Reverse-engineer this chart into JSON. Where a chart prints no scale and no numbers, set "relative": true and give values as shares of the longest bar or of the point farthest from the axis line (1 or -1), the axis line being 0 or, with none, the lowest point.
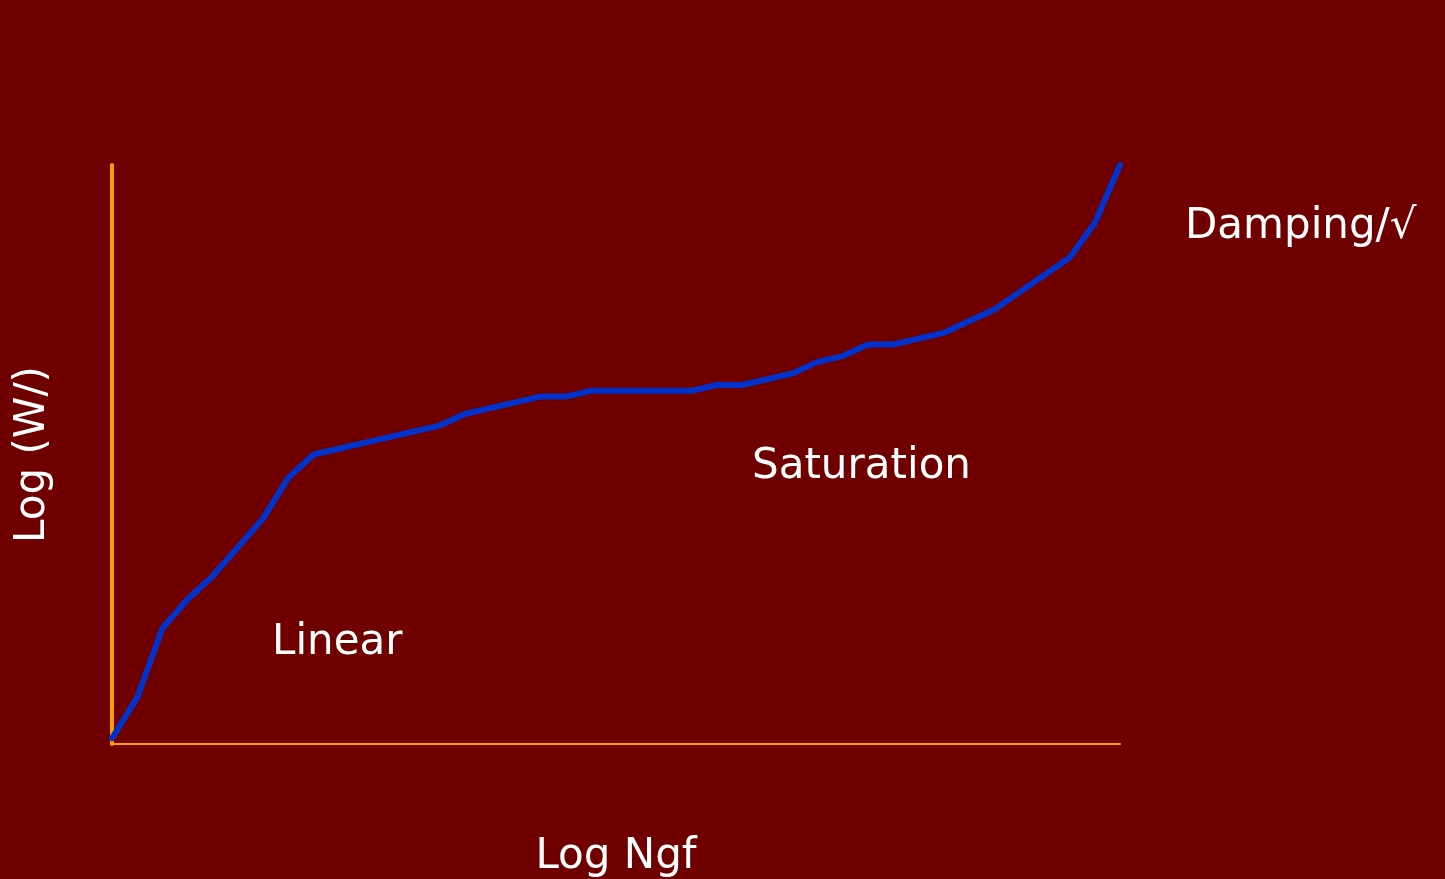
{
  "chart_data": {
    "type": "line",
    "relative": true,
    "xlabel": "Log Ngf",
    "ylabel": "Log (W/)",
    "categories": [
      null,
      null,
      null,
      null,
      null,
      null,
      null,
      null,
      null,
      null,
      null,
      null,
      null,
      null,
      null,
      null,
      null,
      null,
      null,
      null,
      null,
      null,
      null,
      null,
      null,
      null,
      null,
      null,
      null,
      null,
      null,
      null,
      null,
      null,
      null,
      null,
      null,
      null,
      null,
      null,
      null
    ],
    "series": [
      {
        "color": "#0033cc",
        "values": [
          0.01,
          0.08,
          0.2,
          0.25,
          0.29,
          0.34,
          0.39,
          0.46,
          0.5,
          0.51,
          0.52,
          0.53,
          0.54,
          0.55,
          0.57,
          0.58,
          0.59,
          0.6,
          0.6,
          0.61,
          0.61,
          0.61,
          0.61,
          0.61,
          0.62,
          0.62,
          0.63,
          0.64,
          0.66,
          0.67,
          0.69,
          0.69,
          0.7,
          0.71,
          0.73,
          0.75,
          0.78,
          0.81,
          0.84,
          0.9,
          1
        ]
      }
    ],
    "annotations": [
      "Linear",
      "Saturation",
      "Damping/√"
    ],
    "line_style": "solid"
  }
}
